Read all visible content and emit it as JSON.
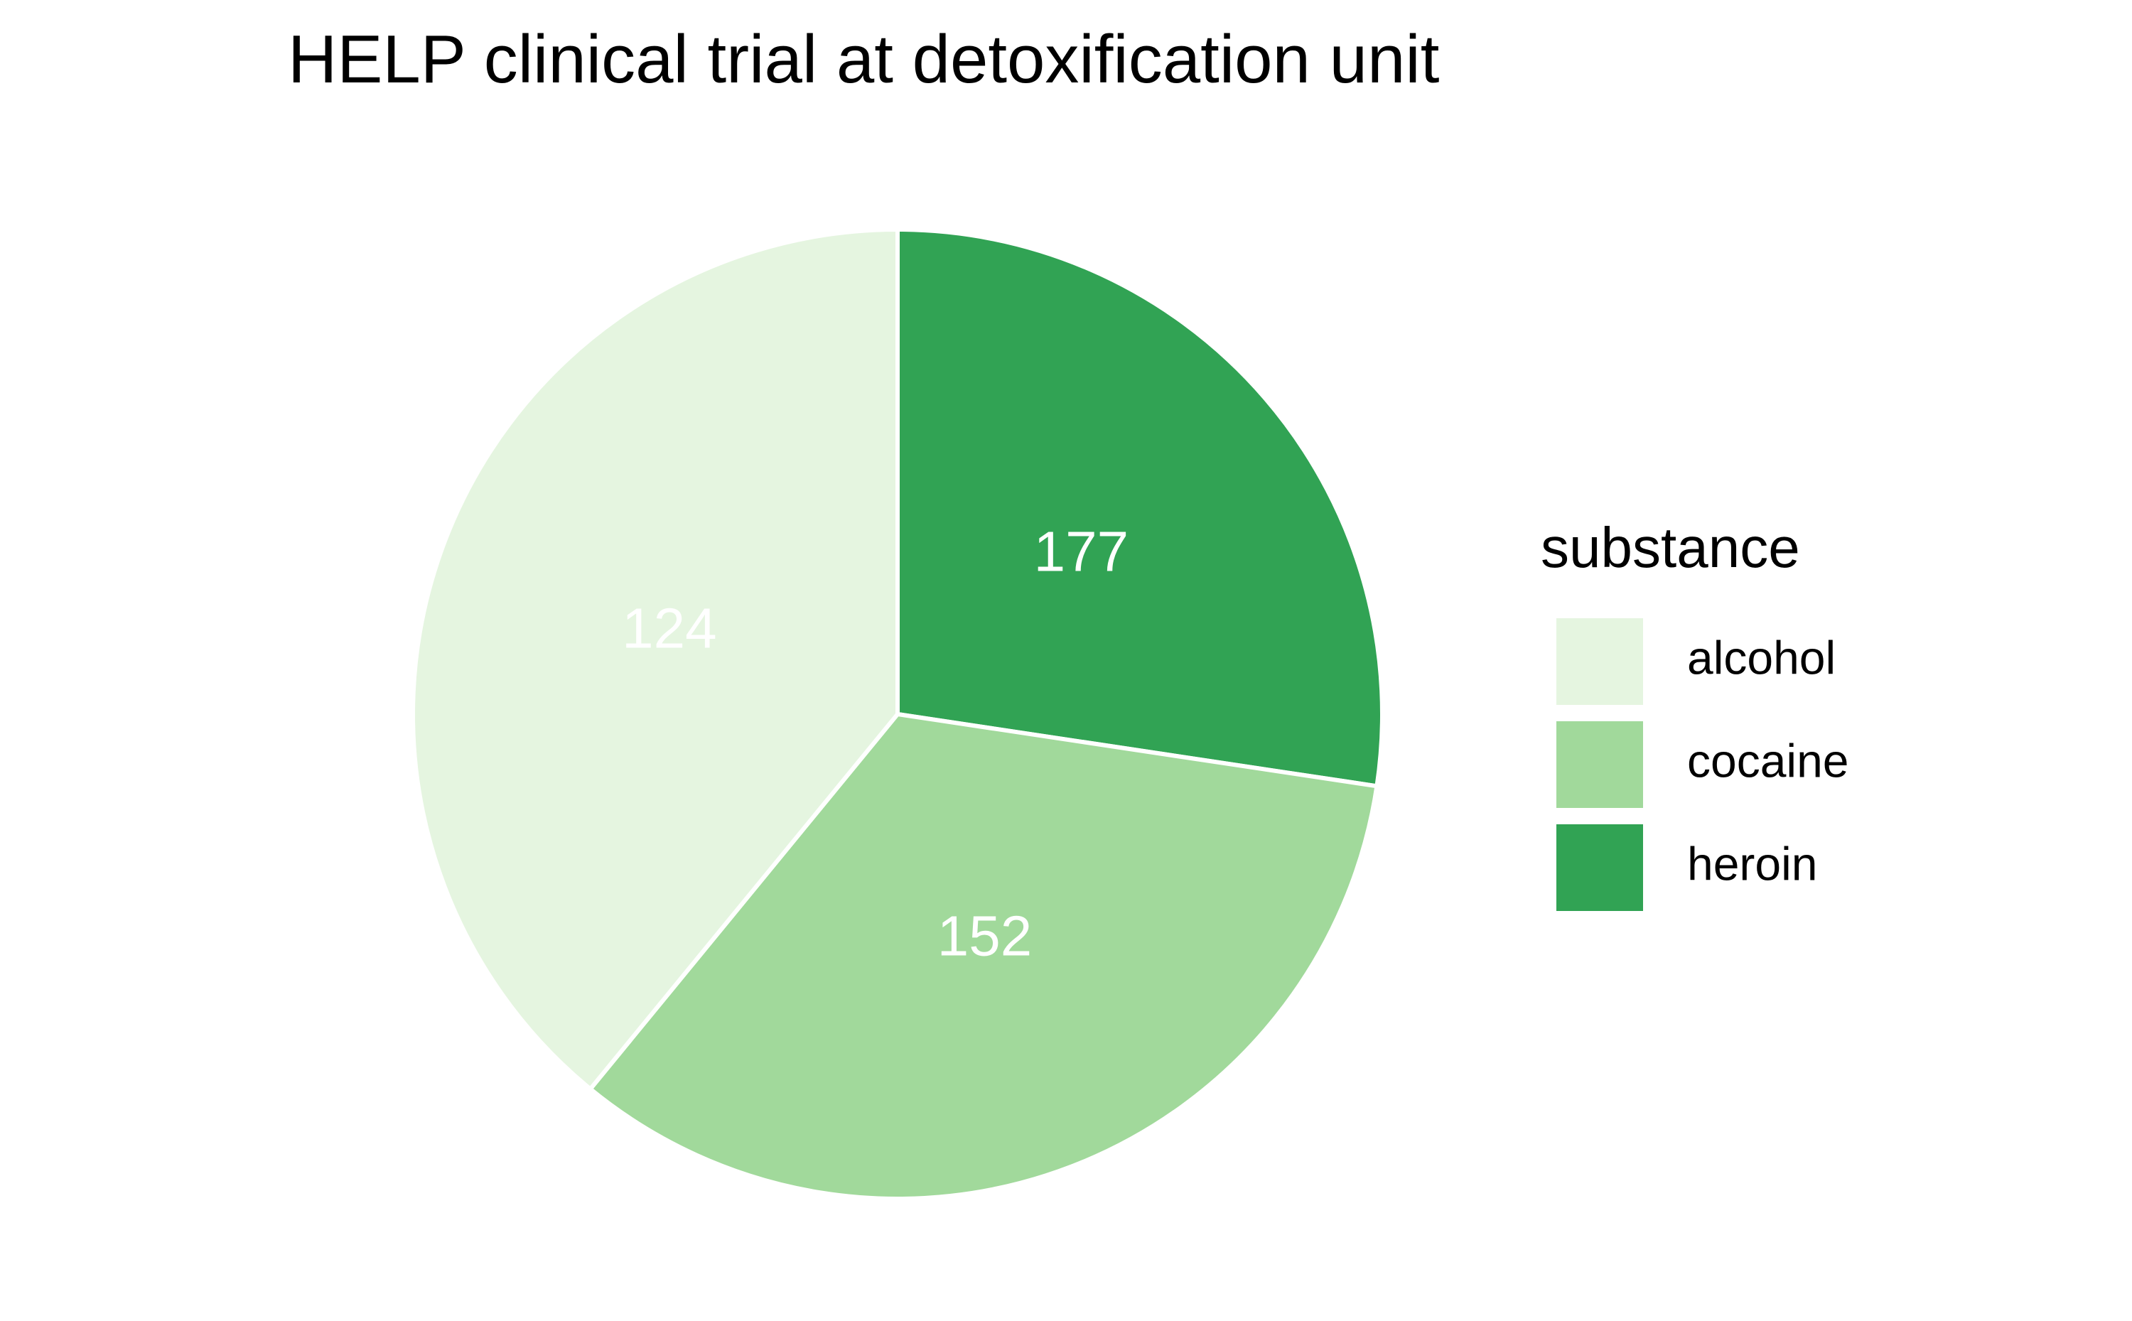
{
  "chart_data": {
    "type": "pie",
    "title": "HELP clinical trial at detoxification unit",
    "legend": {
      "title": "substance",
      "position": "right"
    },
    "slices": [
      {
        "label": "alcohol",
        "value": 177,
        "color": "#e5f5e0"
      },
      {
        "label": "cocaine",
        "value": 152,
        "color": "#a1d99b"
      },
      {
        "label": "heroin",
        "value": 124,
        "color": "#31a354"
      }
    ],
    "data_labels": [
      "124",
      "152",
      "177"
    ],
    "slice_border_color": "#ffffff",
    "label_color": "#ffffff"
  }
}
